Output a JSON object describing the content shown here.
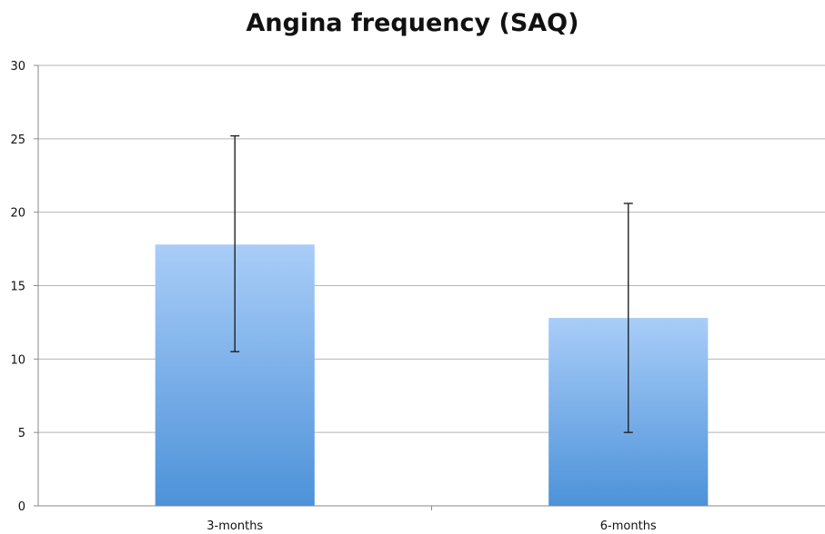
{
  "chart_data": {
    "type": "bar",
    "title": "Angina frequency (SAQ)",
    "categories": [
      "3-months",
      "6-months"
    ],
    "values": [
      17.8,
      12.8
    ],
    "error_bars": [
      {
        "low": 10.5,
        "high": 25.2
      },
      {
        "low": 5.0,
        "high": 20.6
      }
    ],
    "ylim": [
      0,
      30
    ],
    "yticks": [
      "0",
      "5",
      "10",
      "15",
      "20",
      "25",
      "30"
    ],
    "grid": true,
    "legend": "none",
    "colors": {
      "bar_top": "#a9cdf8",
      "bar_bottom": "#4d92d9",
      "grid": "#b5b5b5",
      "axis": "#8a8a8a",
      "error_bar": "#222222"
    }
  }
}
